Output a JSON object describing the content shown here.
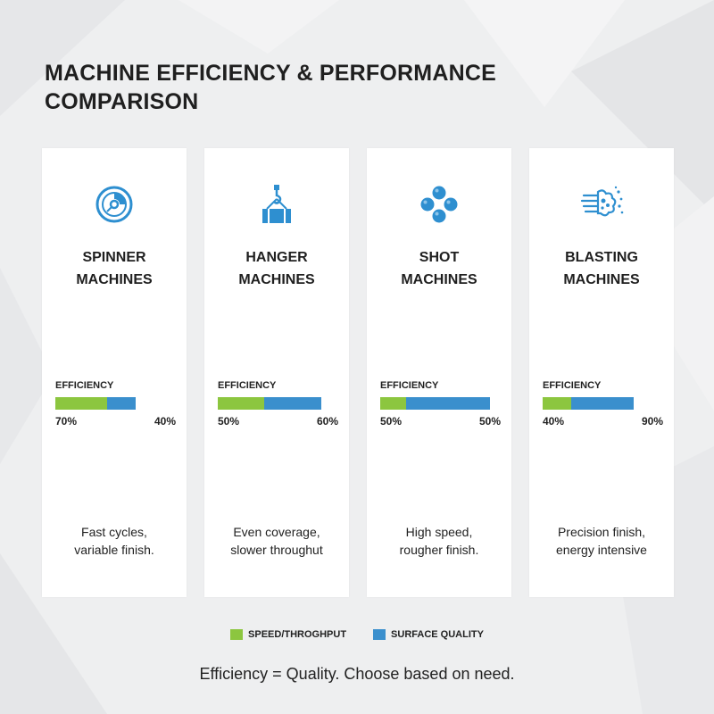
{
  "title": "MACHINE EFFICIENCY & PERFORMANCE COMPARISON",
  "colors": {
    "speed": "#8cc63f",
    "quality": "#3a8fcd",
    "icon": "#2e8fd0"
  },
  "legend": {
    "speed_label": "SPEED/THROGHPUT",
    "quality_label": "SURFACE QUALITY"
  },
  "footer": "Efficiency = Quality. Choose based on need.",
  "chart_data": {
    "type": "bar",
    "orientation": "horizontal-stacked",
    "categories": [
      "SPINNER MACHINES",
      "HANGER MACHINES",
      "SHOT MACHINES",
      "BLASTING MACHINES"
    ],
    "series": [
      {
        "name": "SPEED/THROGHPUT",
        "values": [
          70,
          50,
          50,
          40
        ]
      },
      {
        "name": "SURFACE QUALITY",
        "values": [
          40,
          60,
          50,
          90
        ]
      }
    ],
    "xlabel": "EFFICIENCY",
    "ylabel": "",
    "unit": "%",
    "grid": false,
    "legend_position": "bottom"
  },
  "machines": [
    {
      "icon": "disc-icon",
      "name_line1": "SPINNER",
      "name_line2": "MACHINES",
      "eff_label": "EFFICIENCY",
      "speed_text": "70%",
      "quality_text": "40%",
      "speed_frac": 0.355,
      "quality_frac": 0.2,
      "note_line1": "Fast cycles,",
      "note_line2": "variable finish."
    },
    {
      "icon": "hanger-hook-icon",
      "name_line1": "HANGER",
      "name_line2": "MACHINES",
      "eff_label": "EFFICIENCY",
      "speed_text": "50%",
      "quality_text": "60%",
      "speed_frac": 0.32,
      "quality_frac": 0.395,
      "note_line1": "Even coverage,",
      "note_line2": "slower throughut"
    },
    {
      "icon": "shot-balls-icon",
      "name_line1": "SHOT",
      "name_line2": "MACHINES",
      "eff_label": "EFFICIENCY",
      "speed_text": "50%",
      "quality_text": "50%",
      "speed_frac": 0.18,
      "quality_frac": 0.58,
      "note_line1": "High speed,",
      "note_line2": "rougher finish."
    },
    {
      "icon": "blast-spray-icon",
      "name_line1": "BLASTING",
      "name_line2": "MACHINES",
      "eff_label": "EFFICIENCY",
      "speed_text": "40%",
      "quality_text": "90%",
      "speed_frac": 0.2,
      "quality_frac": 0.43,
      "note_line1": "Precision finish,",
      "note_line2": "energy intensive"
    }
  ]
}
